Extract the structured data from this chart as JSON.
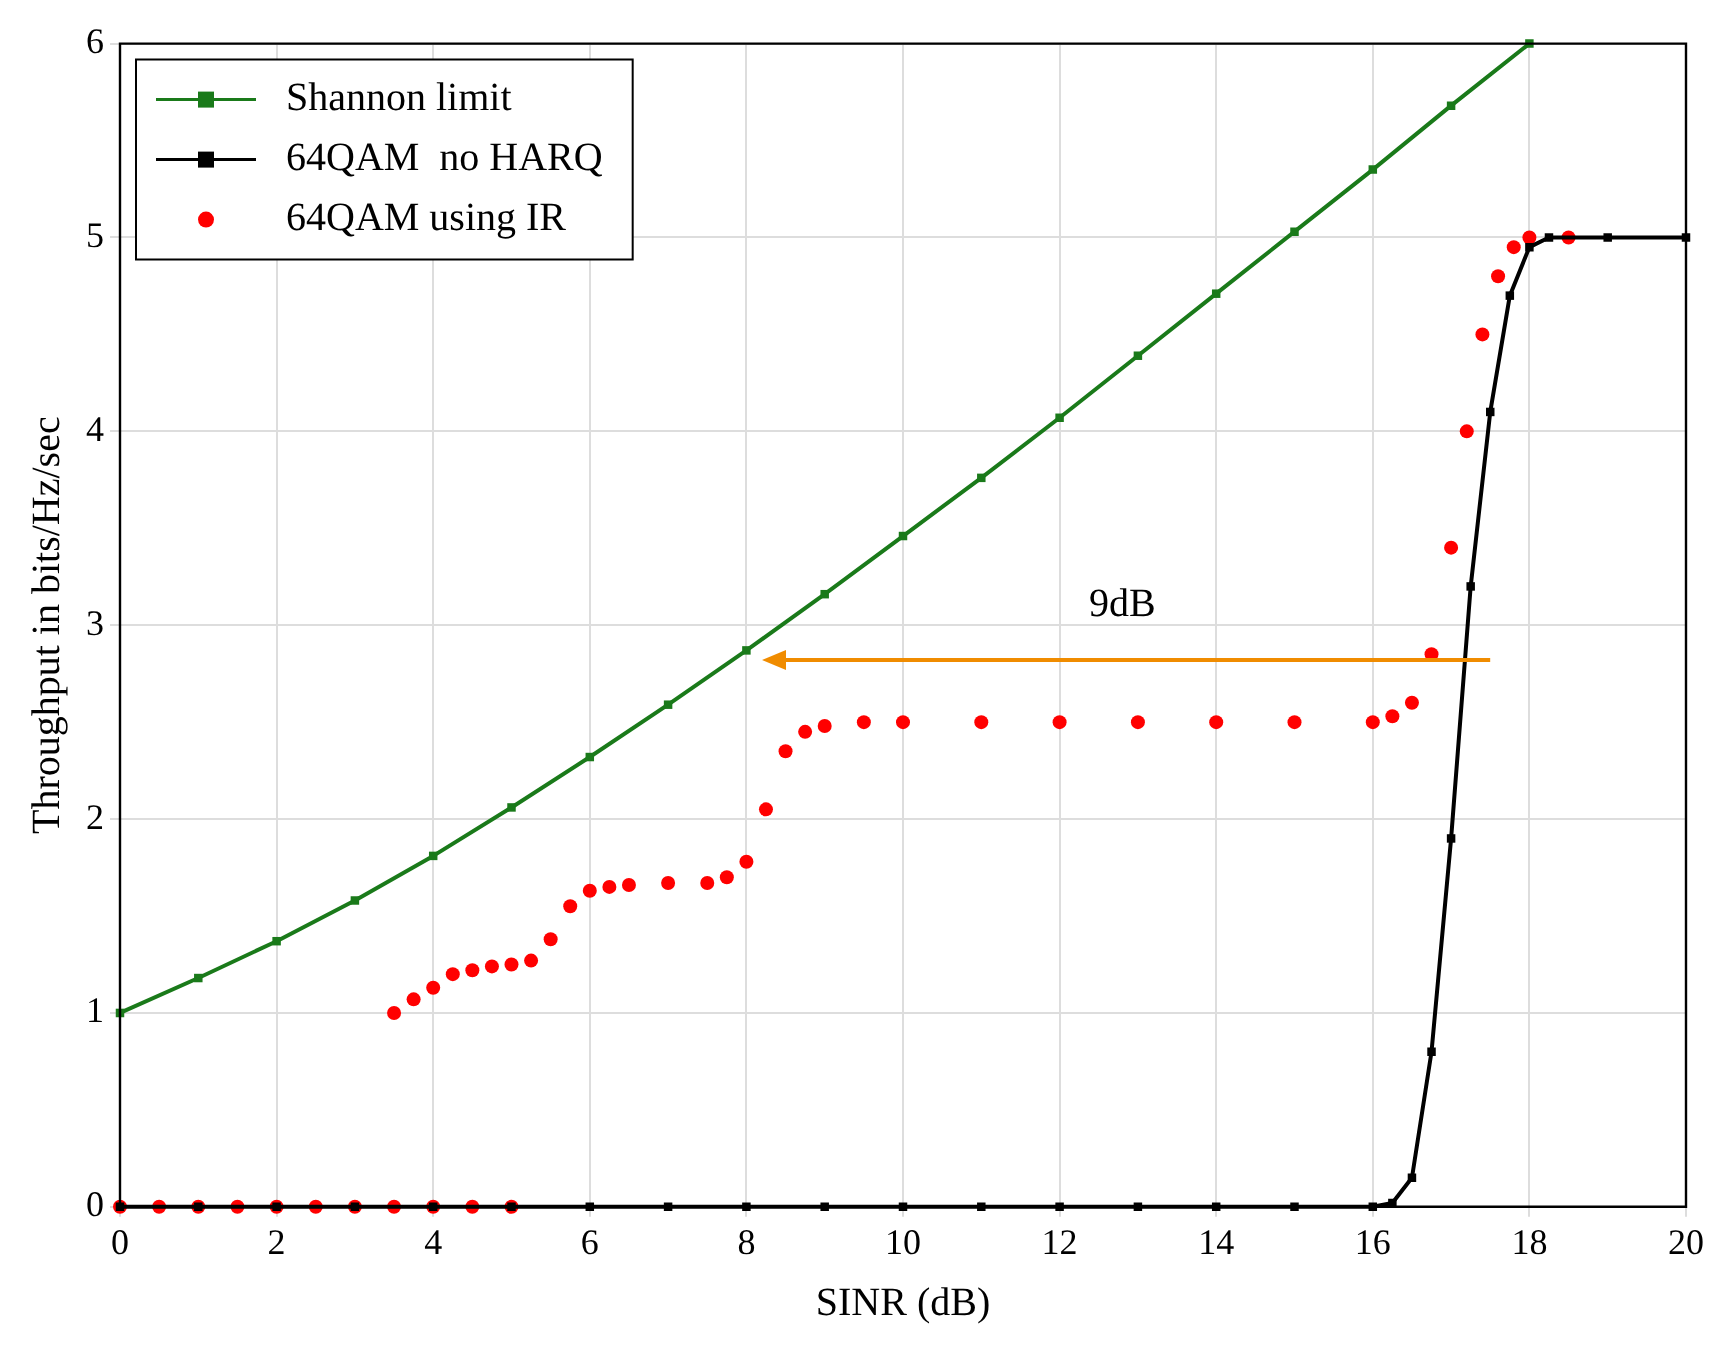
{
  "chart_data": {
    "type": "line",
    "xlabel": "SINR (dB)",
    "ylabel": "Throughput in bits/Hz/sec",
    "xlim": [
      0,
      20
    ],
    "ylim": [
      0,
      6
    ],
    "xticks": [
      0,
      2,
      4,
      6,
      8,
      10,
      12,
      14,
      16,
      18,
      20
    ],
    "yticks": [
      0,
      1,
      2,
      3,
      4,
      5,
      6
    ],
    "grid": true,
    "legend": "top left",
    "series": [
      {
        "name": "Shannon limit",
        "type": "line",
        "marker": "square",
        "color": "#1a7a1a",
        "x": [
          0,
          1,
          2,
          3,
          4,
          5,
          6,
          7,
          8,
          9,
          10,
          11,
          12,
          13,
          14,
          15,
          16,
          17,
          18
        ],
        "values": [
          1.0,
          1.18,
          1.37,
          1.58,
          1.81,
          2.06,
          2.32,
          2.59,
          2.87,
          3.16,
          3.46,
          3.76,
          4.07,
          4.39,
          4.71,
          5.03,
          5.35,
          5.68,
          6.0
        ]
      },
      {
        "name": "64QAM  no HARQ",
        "type": "line",
        "marker": "square",
        "color": "#000000",
        "x": [
          0,
          1,
          2,
          3,
          4,
          5,
          6,
          7,
          8,
          9,
          10,
          11,
          12,
          13,
          14,
          15,
          16,
          16.25,
          16.5,
          16.75,
          17,
          17.25,
          17.5,
          17.75,
          18,
          18.25,
          19,
          20
        ],
        "values": [
          0,
          0,
          0,
          0,
          0,
          0,
          0,
          0,
          0,
          0,
          0,
          0,
          0,
          0,
          0,
          0,
          0,
          0.02,
          0.15,
          0.8,
          1.9,
          3.2,
          4.1,
          4.7,
          4.95,
          5.0,
          5.0,
          5.0
        ]
      },
      {
        "name": "64QAM using IR",
        "type": "scatter",
        "marker": "circle",
        "color": "#ff0000",
        "x": [
          0,
          0.5,
          1,
          1.5,
          2,
          2.5,
          3,
          3.5,
          4,
          4.5,
          5,
          3.5,
          3.75,
          4,
          4.25,
          4.5,
          4.75,
          5,
          5.25,
          5.5,
          5.75,
          6,
          6.25,
          6.5,
          7,
          7.5,
          7.75,
          8,
          8.25,
          8.5,
          8.75,
          9,
          9.5,
          10,
          11,
          12,
          13,
          14,
          15,
          16,
          16.25,
          16.5,
          16.75,
          17,
          17.2,
          17.4,
          17.6,
          17.8,
          18,
          18.5
        ],
        "values": [
          0,
          0,
          0,
          0,
          0,
          0,
          0,
          0,
          0,
          0,
          0,
          1.0,
          1.07,
          1.13,
          1.2,
          1.22,
          1.24,
          1.25,
          1.27,
          1.38,
          1.55,
          1.63,
          1.65,
          1.66,
          1.67,
          1.67,
          1.7,
          1.78,
          2.05,
          2.35,
          2.45,
          2.48,
          2.5,
          2.5,
          2.5,
          2.5,
          2.5,
          2.5,
          2.5,
          2.5,
          2.53,
          2.6,
          2.85,
          3.4,
          4.0,
          4.5,
          4.8,
          4.95,
          5.0,
          5.0
        ]
      }
    ],
    "annotations": [
      "9dB"
    ]
  }
}
